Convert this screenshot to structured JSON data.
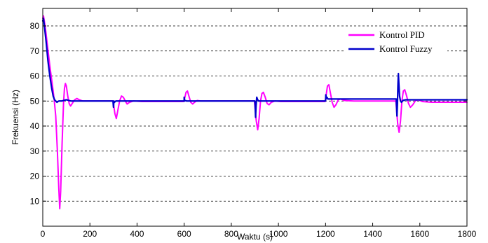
{
  "chart_data": {
    "type": "line",
    "title": "",
    "xlabel": "Waktu (s)",
    "ylabel": "Frekuensi (Hz)",
    "xlim": [
      0,
      1800
    ],
    "ylim": [
      0,
      87
    ],
    "x_ticks": [
      0,
      200,
      400,
      600,
      800,
      1000,
      1200,
      1400,
      1600,
      1800
    ],
    "y_ticks": [
      10,
      20,
      30,
      40,
      50,
      60,
      70,
      80
    ],
    "grid": "horizontal-dashed",
    "legend_position": "top-right",
    "series": [
      {
        "name": "Kontrol PID",
        "color": "#ff00ff",
        "points": [
          [
            0,
            83
          ],
          [
            3,
            84
          ],
          [
            10,
            80
          ],
          [
            20,
            72
          ],
          [
            30,
            64
          ],
          [
            40,
            57
          ],
          [
            48,
            51
          ],
          [
            55,
            44
          ],
          [
            62,
            30
          ],
          [
            68,
            15
          ],
          [
            72,
            7
          ],
          [
            76,
            14
          ],
          [
            82,
            33
          ],
          [
            88,
            49
          ],
          [
            92,
            55
          ],
          [
            96,
            57
          ],
          [
            100,
            56
          ],
          [
            106,
            52
          ],
          [
            112,
            49
          ],
          [
            118,
            48
          ],
          [
            125,
            49
          ],
          [
            135,
            50.5
          ],
          [
            145,
            51
          ],
          [
            155,
            50.5
          ],
          [
            170,
            50
          ],
          [
            200,
            50
          ],
          [
            298,
            50
          ],
          [
            300,
            49
          ],
          [
            306,
            45
          ],
          [
            312,
            43
          ],
          [
            318,
            46
          ],
          [
            326,
            50
          ],
          [
            334,
            52
          ],
          [
            342,
            51.5
          ],
          [
            350,
            50
          ],
          [
            358,
            48.8
          ],
          [
            368,
            49.5
          ],
          [
            385,
            50
          ],
          [
            420,
            49.8
          ],
          [
            598,
            49.8
          ],
          [
            602,
            51
          ],
          [
            608,
            53.5
          ],
          [
            614,
            54
          ],
          [
            620,
            52
          ],
          [
            628,
            49.5
          ],
          [
            636,
            48.8
          ],
          [
            644,
            49.5
          ],
          [
            655,
            50.2
          ],
          [
            670,
            50
          ],
          [
            700,
            50
          ],
          [
            898,
            50
          ],
          [
            900,
            48
          ],
          [
            906,
            42
          ],
          [
            912,
            38.5
          ],
          [
            918,
            43
          ],
          [
            924,
            50
          ],
          [
            930,
            53
          ],
          [
            936,
            53.5
          ],
          [
            944,
            51.5
          ],
          [
            952,
            49
          ],
          [
            960,
            48.5
          ],
          [
            970,
            49.5
          ],
          [
            985,
            50
          ],
          [
            1010,
            49.8
          ],
          [
            1198,
            49.8
          ],
          [
            1202,
            52
          ],
          [
            1208,
            56
          ],
          [
            1214,
            56.5
          ],
          [
            1220,
            53.5
          ],
          [
            1228,
            49.5
          ],
          [
            1236,
            47.5
          ],
          [
            1244,
            48.5
          ],
          [
            1254,
            50.5
          ],
          [
            1264,
            50.8
          ],
          [
            1280,
            50.2
          ],
          [
            1320,
            50
          ],
          [
            1498,
            50
          ],
          [
            1500,
            48
          ],
          [
            1506,
            41
          ],
          [
            1512,
            37.5
          ],
          [
            1518,
            42
          ],
          [
            1524,
            50
          ],
          [
            1530,
            54
          ],
          [
            1536,
            54.5
          ],
          [
            1544,
            52
          ],
          [
            1552,
            49
          ],
          [
            1560,
            47.5
          ],
          [
            1570,
            48.5
          ],
          [
            1582,
            50.2
          ],
          [
            1595,
            50.5
          ],
          [
            1610,
            49.8
          ],
          [
            1650,
            49.5
          ],
          [
            1800,
            49.5
          ]
        ]
      },
      {
        "name": "Kontrol Fuzzy",
        "color": "#0000cc",
        "points": [
          [
            0,
            82
          ],
          [
            3,
            83
          ],
          [
            8,
            79
          ],
          [
            15,
            73
          ],
          [
            22,
            66
          ],
          [
            30,
            60
          ],
          [
            38,
            55
          ],
          [
            44,
            52
          ],
          [
            50,
            50.5
          ],
          [
            55,
            50
          ],
          [
            60,
            49.5
          ],
          [
            68,
            50
          ],
          [
            80,
            50
          ],
          [
            100,
            50.5
          ],
          [
            120,
            50
          ],
          [
            200,
            50
          ],
          [
            298,
            50
          ],
          [
            300,
            47.5
          ],
          [
            302,
            50
          ],
          [
            304,
            49.5
          ],
          [
            310,
            50
          ],
          [
            600,
            50
          ],
          [
            600,
            51.5
          ],
          [
            602,
            50
          ],
          [
            606,
            50.2
          ],
          [
            610,
            50
          ],
          [
            900,
            50
          ],
          [
            901,
            48.5
          ],
          [
            903,
            43.5
          ],
          [
            905,
            48
          ],
          [
            908,
            51.5
          ],
          [
            912,
            50.5
          ],
          [
            916,
            50
          ],
          [
            1200,
            50
          ],
          [
            1201,
            52.5
          ],
          [
            1203,
            51
          ],
          [
            1206,
            51.5
          ],
          [
            1210,
            50.8
          ],
          [
            1220,
            50.8
          ],
          [
            1500,
            50.8
          ],
          [
            1501,
            48.5
          ],
          [
            1503,
            44
          ],
          [
            1505,
            49
          ],
          [
            1507,
            56
          ],
          [
            1509,
            61
          ],
          [
            1511,
            57
          ],
          [
            1514,
            52
          ],
          [
            1518,
            50
          ],
          [
            1522,
            49.5
          ],
          [
            1530,
            50.3
          ],
          [
            1540,
            50.5
          ],
          [
            1800,
            50.5
          ]
        ]
      }
    ]
  }
}
